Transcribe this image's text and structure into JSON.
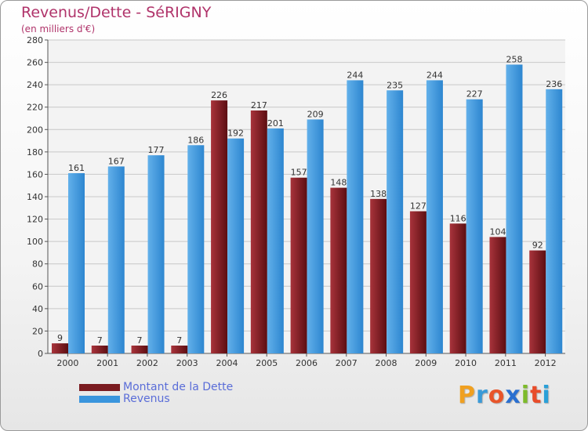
{
  "colors": {
    "debt": "#7a1b20",
    "revenue": "#3a95dd",
    "title": "#b0336a",
    "legend_text": "#5a6dd8"
  },
  "logo": {
    "letters": [
      "P",
      "r",
      "o",
      "x",
      "i",
      "t",
      "i"
    ],
    "letter_colors": [
      "#f0a020",
      "#3a9ad8",
      "#e8552a",
      "#2a6fd0",
      "#7dbb2a",
      "#e84c2a",
      "#2aa0d8"
    ]
  },
  "chart_data": {
    "type": "bar",
    "title": "Revenus/Dette - SéRIGNY",
    "subtitle": "(en milliers d'€)",
    "xlabel": "",
    "ylabel": "",
    "ylim": [
      0,
      280
    ],
    "yticks": [
      0,
      20,
      40,
      60,
      80,
      100,
      120,
      140,
      160,
      180,
      200,
      220,
      240,
      260,
      280
    ],
    "grid": true,
    "legend_position": "bottom-left",
    "categories": [
      "2000",
      "2001",
      "2002",
      "2003",
      "2004",
      "2005",
      "2006",
      "2007",
      "2008",
      "2009",
      "2010",
      "2011",
      "2012"
    ],
    "series": [
      {
        "name": "Montant de la Dette",
        "color": "#7a1b20",
        "values": [
          9,
          7,
          7,
          7,
          226,
          217,
          157,
          148,
          138,
          127,
          116,
          104,
          92
        ]
      },
      {
        "name": "Revenus",
        "color": "#3a95dd",
        "values": [
          161,
          167,
          177,
          186,
          192,
          201,
          209,
          244,
          235,
          244,
          227,
          258,
          236
        ]
      }
    ]
  }
}
